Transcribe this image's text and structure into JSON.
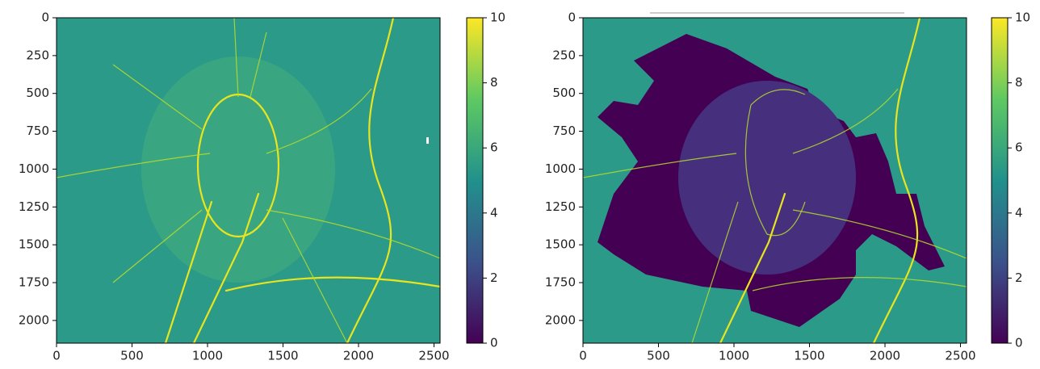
{
  "chart_data": [
    {
      "type": "heatmap",
      "colormap": "viridis",
      "xlim": [
        0,
        2540
      ],
      "ylim": [
        2150,
        0
      ],
      "xticks": [
        0,
        500,
        1000,
        1500,
        2000,
        2500
      ],
      "yticks": [
        0,
        250,
        500,
        750,
        1000,
        1250,
        1500,
        1750,
        2000
      ],
      "clim": [
        0,
        10
      ],
      "cticks": [
        0,
        2,
        4,
        6,
        8,
        10
      ]
    },
    {
      "type": "heatmap",
      "colormap": "viridis",
      "xlim": [
        0,
        2540
      ],
      "ylim": [
        2150,
        0
      ],
      "xticks": [
        0,
        500,
        1000,
        1500,
        2000,
        2500
      ],
      "yticks": [
        0,
        250,
        500,
        750,
        1000,
        1250,
        1500,
        1750,
        2000
      ],
      "clim": [
        0,
        10
      ],
      "cticks": [
        0,
        2,
        4,
        6,
        8,
        10
      ]
    }
  ]
}
